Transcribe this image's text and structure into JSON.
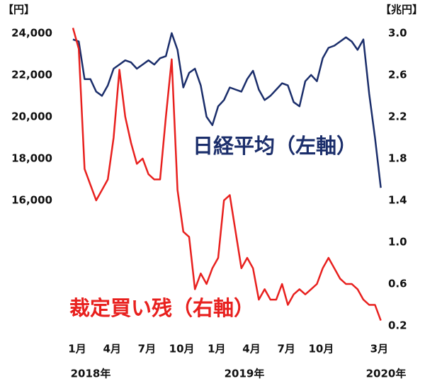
{
  "chart_data": {
    "type": "line",
    "y_label": "【円】",
    "y2_label": "【兆円】",
    "categories": [
      "1月",
      null,
      null,
      null,
      null,
      null,
      "4月",
      null,
      null,
      null,
      null,
      null,
      "7月",
      null,
      null,
      null,
      null,
      null,
      "10月",
      null,
      null,
      null,
      null,
      null,
      "1月",
      null,
      null,
      null,
      null,
      null,
      "4月",
      null,
      null,
      null,
      null,
      null,
      "7月",
      null,
      null,
      null,
      null,
      null,
      "10月",
      null,
      null,
      null,
      null,
      null,
      null,
      null,
      null,
      null,
      "3月",
      null
    ],
    "year_labels": [
      "2018年",
      "2019年",
      "2020年"
    ],
    "series": [
      {
        "name": "日経平均（左軸）",
        "color": "#1b2e6b",
        "axis": "y",
        "values": [
          23700,
          23600,
          21800,
          21800,
          21200,
          21000,
          21500,
          22300,
          22500,
          22700,
          22600,
          22300,
          22500,
          22700,
          22500,
          22800,
          22900,
          24000,
          23200,
          21400,
          22100,
          22300,
          21500,
          20000,
          19600,
          20500,
          20800,
          21400,
          21300,
          21200,
          21800,
          22200,
          21300,
          20800,
          21000,
          21300,
          21600,
          21500,
          20700,
          20500,
          21700,
          22000,
          21700,
          22800,
          23300,
          23400,
          23600,
          23800,
          23600,
          23200,
          23700,
          21100,
          19000,
          16600
        ]
      },
      {
        "name": "裁定買い残（右軸）",
        "color": "#e8201e",
        "axis": "y2",
        "values": [
          3.05,
          2.85,
          1.7,
          1.55,
          1.4,
          1.5,
          1.6,
          2.0,
          2.65,
          2.2,
          1.95,
          1.75,
          1.8,
          1.65,
          1.6,
          1.6,
          2.2,
          2.75,
          1.5,
          1.1,
          1.05,
          0.55,
          0.7,
          0.6,
          0.75,
          0.85,
          1.4,
          1.45,
          1.1,
          0.75,
          0.85,
          0.75,
          0.45,
          0.55,
          0.45,
          0.45,
          0.6,
          0.4,
          0.5,
          0.55,
          0.5,
          0.55,
          0.6,
          0.75,
          0.85,
          0.75,
          0.65,
          0.6,
          0.6,
          0.55,
          0.45,
          0.4,
          0.4,
          0.25
        ]
      }
    ],
    "ylim": [
      10000,
      24400
    ],
    "yticks": [
      {
        "value": 16000,
        "label": "16,000"
      },
      {
        "value": 18000,
        "label": "18,000"
      },
      {
        "value": 20000,
        "label": "20,000"
      },
      {
        "value": 22000,
        "label": "22,000"
      },
      {
        "value": 24000,
        "label": "24,000"
      }
    ],
    "y2lim": [
      0.2,
      3.08
    ],
    "y2ticks": [
      0.2,
      0.6,
      {
        "value": 1,
        "label": "1.0"
      },
      1.4,
      1.8,
      2.2,
      2.6,
      {
        "value": 3,
        "label": "3.0"
      }
    ],
    "grid": false
  }
}
